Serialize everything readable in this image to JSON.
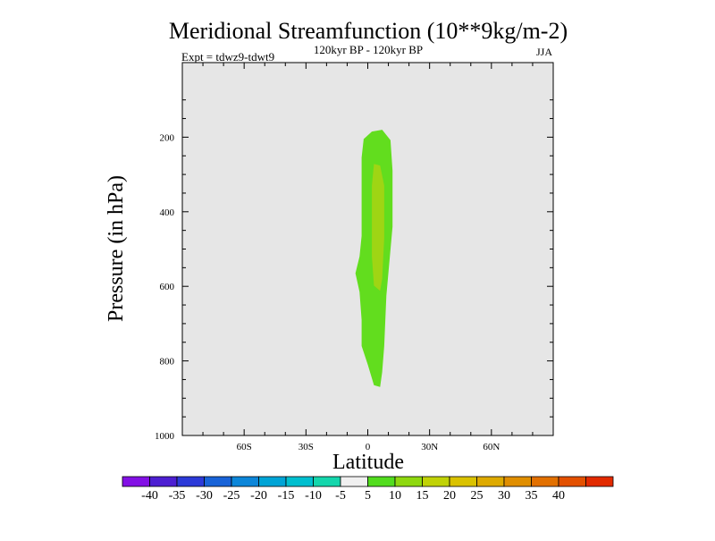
{
  "chart_data": {
    "type": "contour",
    "title": "Meridional Streamfunction (10**9kg/m-2)",
    "subtitle": "120kyr BP - 120kyr BP",
    "experiment_label": "Expt = tdwz9-tdwt9",
    "season_label": "JJA",
    "xlabel": "Latitude",
    "ylabel": "Pressure (in hPa)",
    "xlim": [
      -90,
      90
    ],
    "ylim": [
      1000,
      0
    ],
    "x_ticks": [
      {
        "value": -60,
        "label": "60S"
      },
      {
        "value": -30,
        "label": "30S"
      },
      {
        "value": 0,
        "label": "0"
      },
      {
        "value": 30,
        "label": "30N"
      },
      {
        "value": 60,
        "label": "60N"
      }
    ],
    "y_ticks": [
      {
        "value": 200,
        "label": "200"
      },
      {
        "value": 400,
        "label": "400"
      },
      {
        "value": 600,
        "label": "600"
      },
      {
        "value": 800,
        "label": "800"
      },
      {
        "value": 1000,
        "label": "1000"
      }
    ],
    "background_color": "#e6e6e6",
    "colorbar": {
      "colors": [
        "#8310e5",
        "#4d1fd2",
        "#2c3ad8",
        "#1863d8",
        "#0c86d9",
        "#00a4d6",
        "#00bfcf",
        "#14d6ac",
        "#f0f0f0",
        "#52dc1e",
        "#8ed80f",
        "#c0d206",
        "#dac200",
        "#deaa00",
        "#e08e00",
        "#e27000",
        "#e35000",
        "#e22a00"
      ],
      "labels": [
        "-40",
        "-35",
        "-30",
        "-25",
        "-20",
        "-15",
        "-10",
        "-5",
        "5",
        "10",
        "15",
        "20",
        "25",
        "30",
        "35",
        "40"
      ]
    },
    "contours": [
      {
        "level": "5 to 10",
        "color": "#62dd1e",
        "points": [
          [
            2,
            185
          ],
          [
            7,
            180
          ],
          [
            11,
            208
          ],
          [
            12,
            290
          ],
          [
            12,
            440
          ],
          [
            9,
            625
          ],
          [
            8,
            760
          ],
          [
            7,
            830
          ],
          [
            6,
            870
          ],
          [
            3,
            865
          ],
          [
            0,
            810
          ],
          [
            -3,
            760
          ],
          [
            -3,
            690
          ],
          [
            -4,
            615
          ],
          [
            -6,
            565
          ],
          [
            -4,
            520
          ],
          [
            -3,
            465
          ],
          [
            -3,
            410
          ],
          [
            -3,
            330
          ],
          [
            -3,
            255
          ],
          [
            -2,
            205
          ]
        ]
      },
      {
        "level": "10 to 15",
        "color": "#9fd514",
        "points": [
          [
            3,
            272
          ],
          [
            6,
            276
          ],
          [
            8,
            330
          ],
          [
            8,
            470
          ],
          [
            7,
            580
          ],
          [
            6,
            612
          ],
          [
            3,
            598
          ],
          [
            2,
            520
          ],
          [
            2,
            430
          ],
          [
            2,
            330
          ]
        ]
      }
    ]
  }
}
